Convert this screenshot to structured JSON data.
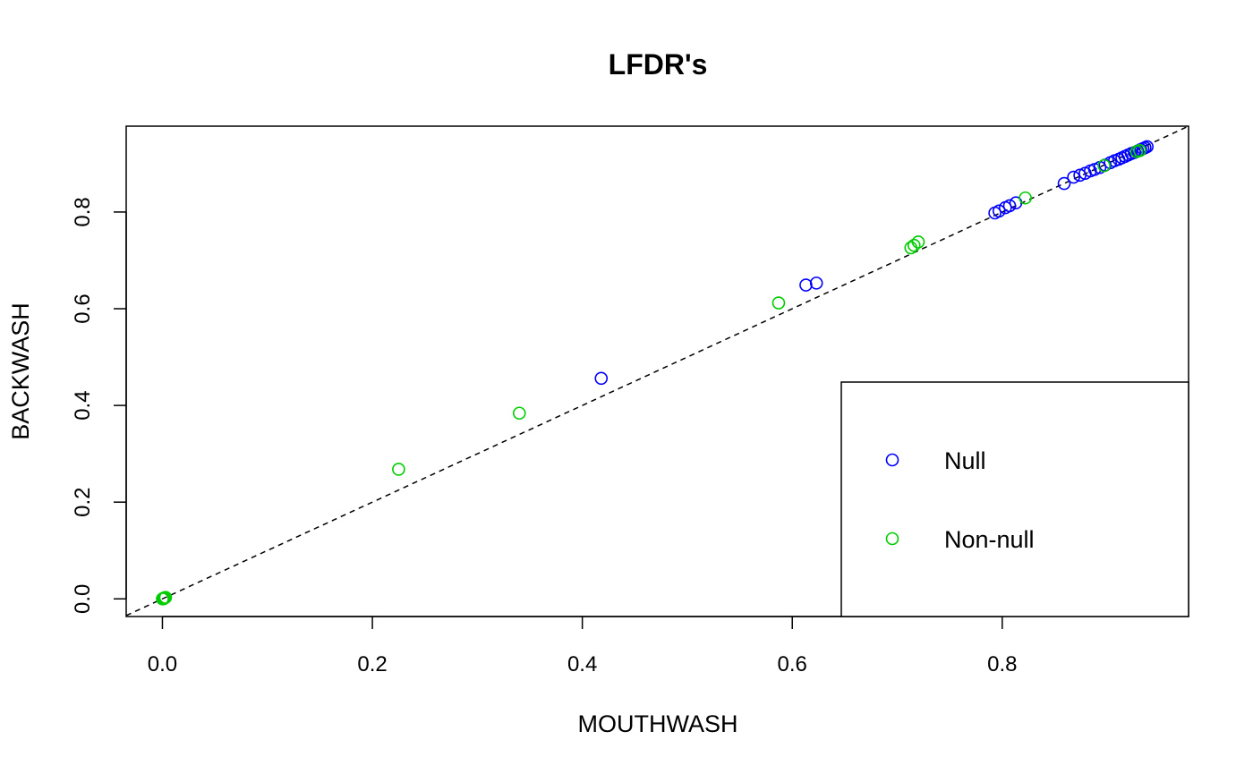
{
  "chart_data": {
    "type": "scatter",
    "title": "LFDR's",
    "xlabel": "MOUTHWASH",
    "ylabel": "BACKWASH",
    "xlim": [
      -0.0345,
      0.9775
    ],
    "ylim": [
      -0.0365,
      0.9775
    ],
    "xticks": [
      0.0,
      0.2,
      0.4,
      0.6,
      0.8
    ],
    "xtick_labels": [
      "0.0",
      "0.2",
      "0.4",
      "0.6",
      "0.8"
    ],
    "yticks": [
      0.0,
      0.2,
      0.4,
      0.6,
      0.8
    ],
    "ytick_labels": [
      "0.0",
      "0.2",
      "0.4",
      "0.6",
      "0.8"
    ],
    "reference_line": {
      "type": "identity",
      "style": "dashed",
      "color": "#000000"
    },
    "legend": {
      "position": "bottom-right"
    },
    "grid": false,
    "series": [
      {
        "name": "Null",
        "color": "#0000ff",
        "marker": "open-circle",
        "points": [
          [
            0.418,
            0.456
          ],
          [
            0.613,
            0.649
          ],
          [
            0.623,
            0.653
          ],
          [
            0.793,
            0.798
          ],
          [
            0.797,
            0.802
          ],
          [
            0.803,
            0.809
          ],
          [
            0.807,
            0.813
          ],
          [
            0.813,
            0.819
          ],
          [
            0.859,
            0.859
          ],
          [
            0.868,
            0.872
          ],
          [
            0.874,
            0.876
          ],
          [
            0.879,
            0.88
          ],
          [
            0.884,
            0.885
          ],
          [
            0.888,
            0.888
          ],
          [
            0.893,
            0.892
          ],
          [
            0.898,
            0.897
          ],
          [
            0.903,
            0.902
          ],
          [
            0.907,
            0.906
          ],
          [
            0.911,
            0.909
          ],
          [
            0.914,
            0.912
          ],
          [
            0.917,
            0.915
          ],
          [
            0.92,
            0.918
          ],
          [
            0.923,
            0.921
          ],
          [
            0.926,
            0.923
          ],
          [
            0.929,
            0.926
          ],
          [
            0.932,
            0.929
          ],
          [
            0.934,
            0.931
          ],
          [
            0.936,
            0.933
          ],
          [
            0.938,
            0.935
          ]
        ]
      },
      {
        "name": "Non-null",
        "color": "#00cd00",
        "marker": "open-circle",
        "points": [
          [
            0.0,
            0.0
          ],
          [
            0.001,
            0.001
          ],
          [
            0.002,
            0.002
          ],
          [
            0.003,
            0.003
          ],
          [
            0.001,
            0.0
          ],
          [
            0.225,
            0.268
          ],
          [
            0.34,
            0.384
          ],
          [
            0.587,
            0.612
          ],
          [
            0.713,
            0.726
          ],
          [
            0.716,
            0.731
          ],
          [
            0.72,
            0.738
          ],
          [
            0.822,
            0.829
          ],
          [
            0.897,
            0.896
          ],
          [
            0.928,
            0.925
          ],
          [
            0.931,
            0.927
          ]
        ]
      }
    ]
  }
}
